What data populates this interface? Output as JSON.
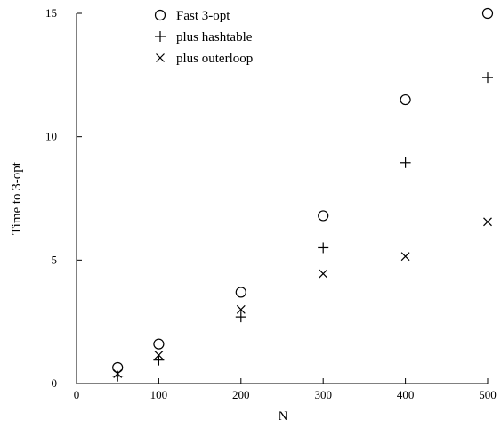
{
  "chart_data": {
    "type": "scatter",
    "title": "",
    "xlabel": "N",
    "ylabel": "Time to 3-opt",
    "xlim": [
      0,
      500
    ],
    "ylim": [
      0,
      15
    ],
    "x_ticks": [
      "0",
      "100",
      "200",
      "300",
      "400",
      "500"
    ],
    "y_ticks": [
      "0",
      "5",
      "10",
      "15"
    ],
    "grid": false,
    "legend_position": "top-left",
    "series": [
      {
        "name": "Fast 3-opt",
        "marker": "circle",
        "x": [
          50,
          100,
          200,
          300,
          400,
          500
        ],
        "y": [
          0.65,
          1.6,
          3.7,
          6.8,
          11.5,
          15.0
        ]
      },
      {
        "name": "plus hashtable",
        "marker": "plus",
        "x": [
          50,
          100,
          200,
          300,
          400,
          500
        ],
        "y": [
          0.3,
          0.95,
          2.7,
          5.5,
          8.95,
          12.4
        ]
      },
      {
        "name": "plus outerloop",
        "marker": "cross",
        "x": [
          50,
          100,
          200,
          300,
          400,
          500
        ],
        "y": [
          0.4,
          1.15,
          3.0,
          4.45,
          5.15,
          6.55
        ]
      }
    ],
    "colors": {
      "marker": "#000000",
      "axis": "#000000",
      "background": "#ffffff"
    }
  }
}
